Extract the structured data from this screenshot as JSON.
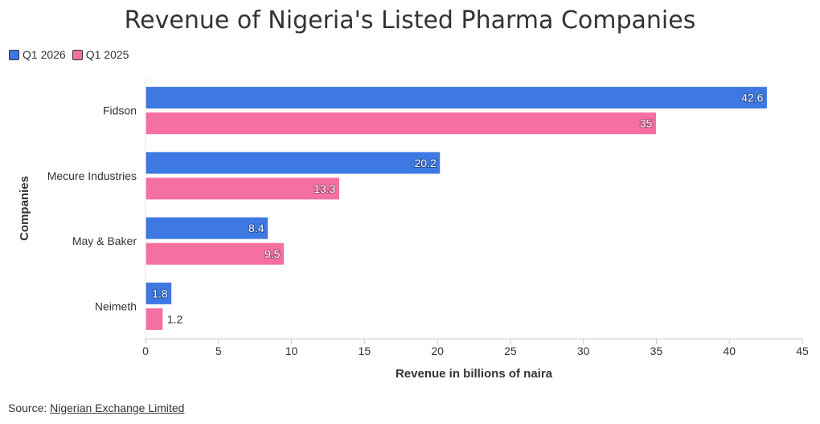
{
  "chart_data": {
    "type": "bar",
    "orientation": "horizontal",
    "title": "Revenue of Nigeria's Listed Pharma Companies",
    "xlabel": "Revenue in billions of naira",
    "ylabel": "Companies",
    "categories": [
      "Fidson",
      "Mecure Industries",
      "May & Baker",
      "Neimeth"
    ],
    "series": [
      {
        "name": "Q1 2026",
        "color": "#3d78e3",
        "values": [
          42.6,
          20.2,
          8.4,
          1.8
        ]
      },
      {
        "name": "Q1 2025",
        "color": "#f56fa1",
        "values": [
          35,
          13.3,
          9.5,
          1.2
        ]
      }
    ],
    "xlim": [
      0,
      45
    ],
    "xticks": [
      "0",
      "5",
      "10",
      "15",
      "20",
      "25",
      "30",
      "35",
      "40",
      "45"
    ],
    "data_labels": [
      [
        "42.6",
        "20.2",
        "8.4",
        "1.8"
      ],
      [
        "35",
        "13.3",
        "9.5",
        "1.2"
      ]
    ],
    "grid": false,
    "legend_position": "top-left"
  },
  "source": {
    "prefix": "Source: ",
    "link_text": "Nigerian Exchange Limited"
  }
}
